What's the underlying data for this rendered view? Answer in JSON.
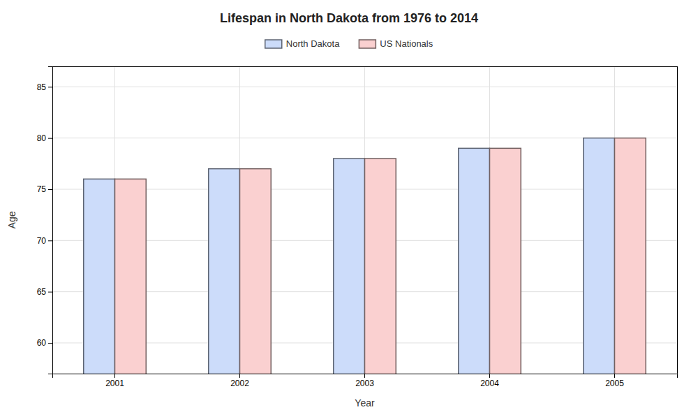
{
  "chart_data": {
    "type": "bar",
    "title": "Lifespan in North Dakota from 1976 to 2014",
    "xlabel": "Year",
    "ylabel": "Age",
    "categories": [
      "2001",
      "2002",
      "2003",
      "2004",
      "2005"
    ],
    "series": [
      {
        "name": "North Dakota",
        "color": "#ccdcfa",
        "values": [
          76,
          77,
          78,
          79,
          80
        ]
      },
      {
        "name": "US Nationals",
        "color": "#fad0d0",
        "values": [
          76,
          77,
          78,
          79,
          80
        ]
      }
    ],
    "ylim": [
      57,
      87
    ],
    "yticks": [
      60,
      65,
      70,
      75,
      80,
      85
    ],
    "grid": true,
    "legend": "top"
  }
}
